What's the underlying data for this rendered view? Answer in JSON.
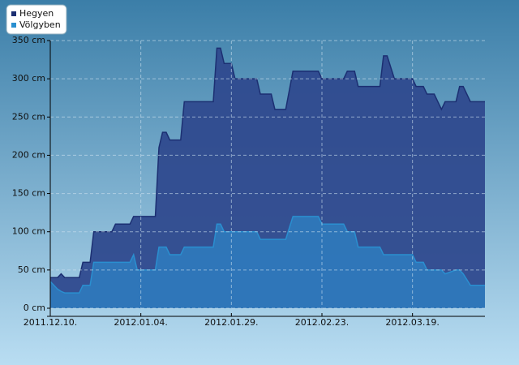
{
  "chart_data": {
    "type": "area",
    "x": [
      "2011.12.10.",
      "2011.12.12.",
      "2011.12.13.",
      "2011.12.14.",
      "2011.12.18.",
      "2011.12.19.",
      "2011.12.21.",
      "2011.12.22.",
      "2011.12.27.",
      "2011.12.28.",
      "2012.01.01.",
      "2012.01.02.",
      "2012.01.03.",
      "2012.01.08.",
      "2012.01.09.",
      "2012.01.10.",
      "2012.01.11.",
      "2012.01.12.",
      "2012.01.15.",
      "2012.01.16.",
      "2012.01.24.",
      "2012.01.25.",
      "2012.01.26.",
      "2012.01.27.",
      "2012.01.29.",
      "2012.01.30.",
      "2012.02.05.",
      "2012.02.06.",
      "2012.02.09.",
      "2012.02.10.",
      "2012.02.13.",
      "2012.02.15.",
      "2012.02.22.",
      "2012.02.23.",
      "2012.02.29.",
      "2012.03.01.",
      "2012.03.03.",
      "2012.03.04.",
      "2012.03.10.",
      "2012.03.11.",
      "2012.03.12.",
      "2012.03.14.",
      "2012.03.19.",
      "2012.03.20.",
      "2012.03.22.",
      "2012.03.23.",
      "2012.03.25.",
      "2012.03.26.",
      "2012.03.27.",
      "2012.03.28.",
      "2012.03.31.",
      "2012.04.01.",
      "2012.04.02.",
      "2012.04.04.",
      "2012.04.08."
    ],
    "series": [
      {
        "name": "Hegyen",
        "color": "#1c2f72",
        "fill": "#2f4a8e",
        "values": [
          40,
          40,
          45,
          40,
          40,
          60,
          60,
          100,
          100,
          110,
          110,
          120,
          120,
          120,
          210,
          230,
          230,
          220,
          220,
          270,
          270,
          340,
          340,
          320,
          320,
          300,
          300,
          280,
          280,
          260,
          260,
          310,
          310,
          300,
          300,
          310,
          310,
          290,
          290,
          330,
          330,
          300,
          300,
          290,
          290,
          280,
          280,
          270,
          260,
          270,
          270,
          290,
          290,
          270,
          270
        ]
      },
      {
        "name": "Völgyben",
        "color": "#2a8fd0",
        "fill": "#2f78bb",
        "values": [
          35,
          25,
          22,
          20,
          20,
          30,
          30,
          60,
          60,
          60,
          60,
          70,
          50,
          50,
          80,
          80,
          80,
          70,
          70,
          80,
          80,
          110,
          110,
          100,
          100,
          100,
          100,
          90,
          90,
          90,
          90,
          120,
          120,
          110,
          110,
          100,
          100,
          80,
          80,
          70,
          70,
          70,
          70,
          60,
          60,
          50,
          50,
          50,
          50,
          45,
          50,
          50,
          45,
          30,
          30
        ]
      }
    ],
    "xlim": [
      "2011.12.10.",
      "2012.04.08."
    ],
    "xticks": [
      "2011.12.10.",
      "2012.01.04.",
      "2012.01.29.",
      "2012.02.23.",
      "2012.03.19."
    ],
    "ylim": [
      0,
      350
    ],
    "yticks": [
      {
        "value": 0,
        "label": "0 cm"
      },
      {
        "value": 50,
        "label": "50 cm"
      },
      {
        "value": 100,
        "label": "100 cm"
      },
      {
        "value": 150,
        "label": "150 cm"
      },
      {
        "value": 200,
        "label": "200 cm"
      },
      {
        "value": 250,
        "label": "250 cm"
      },
      {
        "value": 300,
        "label": "300 cm"
      },
      {
        "value": 350,
        "label": "350 cm"
      }
    ],
    "grid": true,
    "legend": "top-left"
  }
}
